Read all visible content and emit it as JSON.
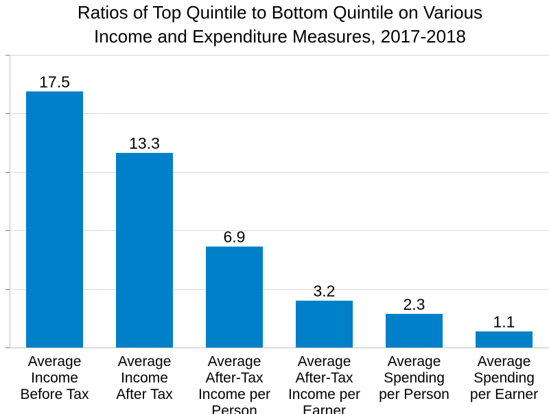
{
  "chart_data": {
    "type": "bar",
    "title": "Ratios of Top Quintile to Bottom Quintile on Various Income and Expenditure Measures, 2017-2018",
    "title_lines": [
      "Ratios of Top Quintile to Bottom Quintile on Various",
      "Income and Expenditure Measures, 2017-2018"
    ],
    "categories": [
      "Average Income Before Tax",
      "Average Income After Tax",
      "Average After-Tax Income per Person",
      "Average After-Tax Income per Earner",
      "Average Spending per Person",
      "Average Spending per Earner"
    ],
    "category_lines": [
      [
        "Average",
        "Income",
        "Before Tax"
      ],
      [
        "Average",
        "Income",
        "After Tax"
      ],
      [
        "Average",
        "After-Tax",
        "Income per",
        "Person"
      ],
      [
        "Average",
        "After-Tax",
        "Income per",
        "Earner"
      ],
      [
        "Average",
        "Spending",
        "per Person"
      ],
      [
        "Average",
        "Spending",
        "per Earner"
      ]
    ],
    "values": [
      17.5,
      13.3,
      6.9,
      3.2,
      2.3,
      1.1
    ],
    "value_labels": [
      "17.5",
      "13.3",
      "6.9",
      "3.2",
      "2.3",
      "1.1"
    ],
    "xlabel": "",
    "ylabel": "",
    "ylim": [
      0,
      20
    ],
    "ytick_step": 4,
    "ytick_labels_shown": false,
    "grid": true,
    "legend": "none",
    "bar_color": "#0080c9"
  }
}
